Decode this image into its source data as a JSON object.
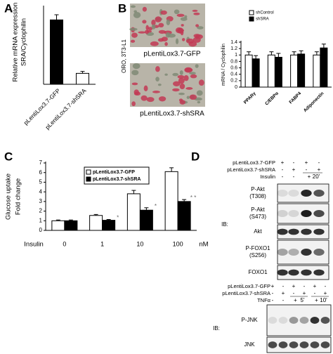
{
  "panel_labels": [
    "A",
    "B",
    "C",
    "D"
  ],
  "chart_data": [
    {
      "type": "bar",
      "y_label": [
        "Relative mRNA expression",
        "SRA/Cyclophilin"
      ],
      "categories": [
        "pLentiLox3.7-GFP",
        "pLentiLox3.7-shSRA"
      ],
      "values": [
        1.0,
        0.17
      ],
      "errors": [
        0.08,
        0.03
      ],
      "colors": [
        "#000000",
        "#ffffff"
      ],
      "ylim": [
        0,
        1.2
      ]
    },
    {
      "type": "bar",
      "y_label": [
        "mRNA / Cyclophilin"
      ],
      "categories": [
        "PPARγ",
        "C/EBPα",
        "FABP4",
        "Adiponectin"
      ],
      "series": [
        {
          "name": "shControl",
          "color": "#ffffff",
          "values": [
            1.0,
            1.0,
            1.0,
            1.0
          ],
          "errors": [
            0.1,
            0.1,
            0.1,
            0.1
          ]
        },
        {
          "name": "shSRA",
          "color": "#000000",
          "values": [
            0.88,
            0.93,
            1.03,
            1.22
          ],
          "errors": [
            0.1,
            0.12,
            0.1,
            0.12
          ]
        }
      ],
      "ylim": [
        0,
        1.4
      ],
      "yticks": [
        0,
        0.2,
        0.4,
        0.6,
        0.8,
        1,
        1.2,
        1.4
      ]
    },
    {
      "type": "bar",
      "y_label": [
        "Glucose uptake",
        "Fold change"
      ],
      "x_label": "Insulin",
      "x_unit": "nM",
      "categories": [
        "0",
        "1",
        "10",
        "100"
      ],
      "series": [
        {
          "name": "pLentiLox3.7-GFP",
          "color": "#ffffff",
          "values": [
            1.0,
            1.55,
            3.8,
            6.1
          ],
          "errors": [
            0.08,
            0.1,
            0.35,
            0.4
          ]
        },
        {
          "name": "pLentiLox3.7-shSRA",
          "color": "#000000",
          "values": [
            1.0,
            1.05,
            2.1,
            3.0
          ],
          "errors": [
            0.08,
            0.08,
            0.25,
            0.2
          ],
          "significance": [
            null,
            "*",
            "*",
            "* *"
          ]
        }
      ],
      "ylim": [
        0,
        7
      ],
      "yticks": [
        0,
        1,
        2,
        3,
        4,
        5,
        6,
        7
      ]
    }
  ],
  "micrographs": {
    "side_label": "ORO, 3T3-L1",
    "captions": [
      "pLentiLox3.7-GFP",
      "pLentiLox3.7-shSRA"
    ]
  },
  "blots": [
    {
      "rows": [
        {
          "label": "pLentiLox3.7-GFP",
          "signs": [
            "+",
            "-",
            "+",
            "-"
          ]
        },
        {
          "label": "pLentiLox3.7-shSRA",
          "signs": [
            "-",
            "+",
            "-",
            "+"
          ]
        },
        {
          "label": "Insulin",
          "signs": [
            "-",
            "-",
            "+"
          ],
          "times": [
            "20'"
          ]
        }
      ],
      "ib_label": "IB:",
      "bands": [
        [
          "P-Akt",
          "(T308)"
        ],
        [
          "P-Akt",
          "(S473)"
        ],
        [
          "Akt"
        ],
        [
          "P-FOXO1",
          "(S256)"
        ],
        [
          "FOXO1"
        ]
      ]
    },
    {
      "rows": [
        {
          "label": "pLentiLox3.7-GFP",
          "signs": [
            "+",
            "-",
            "+",
            "-",
            "+",
            "-"
          ]
        },
        {
          "label": "pLentiLox3.7-shSRA",
          "signs": [
            "-",
            "+",
            "-",
            "+",
            "-",
            "+"
          ]
        },
        {
          "label": "TNFα",
          "signs": [
            "-",
            "-",
            "+",
            "+"
          ],
          "times": [
            "5'",
            "10'"
          ]
        }
      ],
      "ib_label": "IB:",
      "bands": [
        [
          "P-JNK"
        ],
        [
          "JNK"
        ]
      ]
    }
  ]
}
